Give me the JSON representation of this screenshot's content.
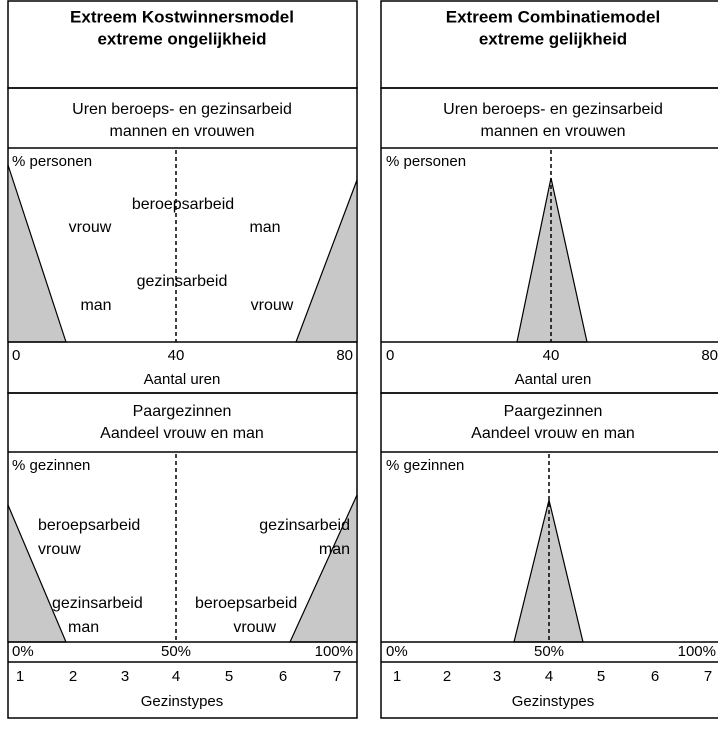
{
  "columns": [
    {
      "title": [
        "Extreem Kostwinnersmodel",
        "extreme ongelijkheid"
      ],
      "hours_panel": {
        "title": [
          "Uren beroeps- en gezinsarbeid",
          "mannen en vrouwen"
        ],
        "y_label": "% personen",
        "labels": [
          "beroepsarbeid",
          "vrouw",
          "man",
          "gezinsarbeid",
          "man",
          "vrouw"
        ],
        "axis_labels": [
          "0",
          "40",
          "80"
        ],
        "x_label": "Aantal uren"
      },
      "families_panel": {
        "title": [
          "Paargezinnen",
          "Aandeel vrouw en man"
        ],
        "y_label": "% gezinnen",
        "labels": [
          "beroepsarbeid",
          "vrouw",
          "gezinsarbeid",
          "man",
          "gezinsarbeid",
          "man",
          "beroepsarbeid",
          "vrouw"
        ],
        "axis_labels": [
          "0%",
          "50%",
          "100%"
        ],
        "types": [
          "1",
          "2",
          "3",
          "4",
          "5",
          "6",
          "7"
        ],
        "x_label": "Gezinstypes"
      }
    },
    {
      "title": [
        "Extreem Combinatiemodel",
        "extreme gelijkheid"
      ],
      "hours_panel": {
        "title": [
          "Uren beroeps- en gezinsarbeid",
          "mannen en vrouwen"
        ],
        "y_label": "% personen",
        "axis_labels": [
          "0",
          "40",
          "80"
        ],
        "x_label": "Aantal uren"
      },
      "families_panel": {
        "title": [
          "Paargezinnen",
          "Aandeel vrouw en man"
        ],
        "y_label": "% gezinnen",
        "axis_labels": [
          "0%",
          "50%",
          "100%"
        ],
        "types": [
          "1",
          "2",
          "3",
          "4",
          "5",
          "6",
          "7"
        ],
        "x_label": "Gezinstypes"
      }
    }
  ]
}
